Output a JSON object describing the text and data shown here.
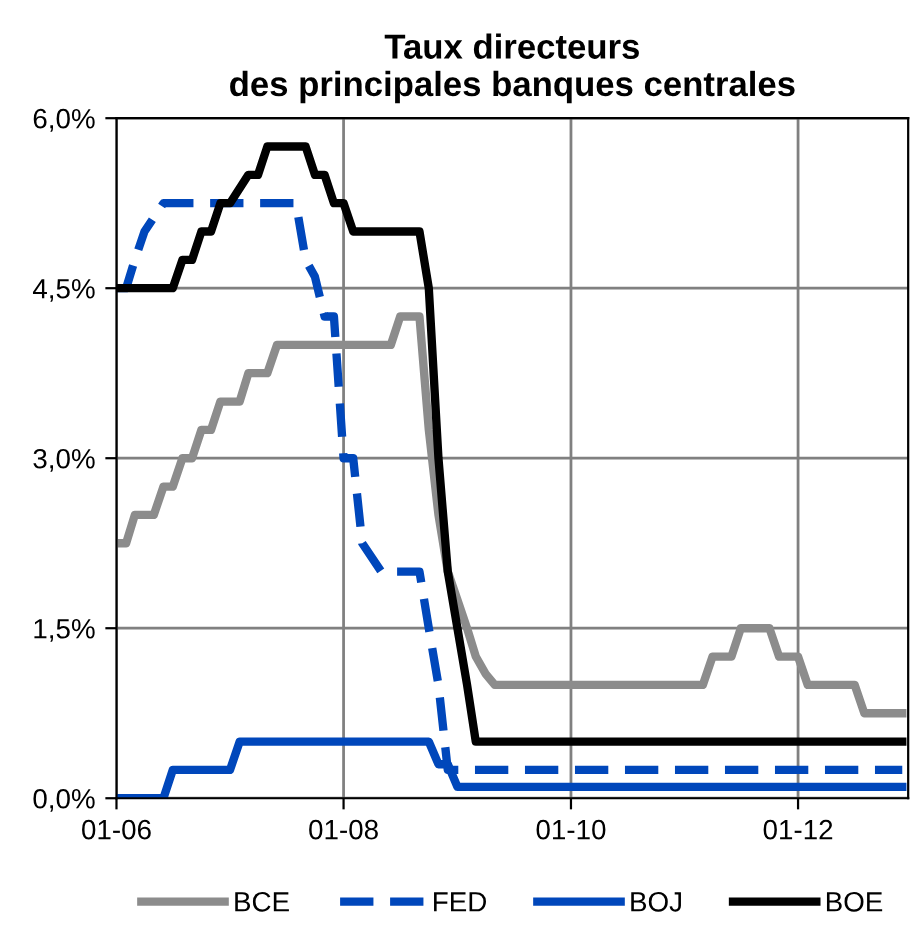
{
  "chart_data": {
    "type": "line",
    "title": "Taux directeurs\ndes principales banques centrales",
    "xlim": [
      "2006-01",
      "2012-12-20"
    ],
    "xticks": [
      {
        "value": "2006-01",
        "label": "01-06"
      },
      {
        "value": "2008-01",
        "label": "01-08"
      },
      {
        "value": "2010-01",
        "label": "01-10"
      },
      {
        "value": "2012-01",
        "label": "01-12"
      }
    ],
    "ylim": [
      0,
      6
    ],
    "yticks": [
      {
        "value": 0,
        "label": "0,0%"
      },
      {
        "value": 1.5,
        "label": "1,5%"
      },
      {
        "value": 3,
        "label": "3,0%"
      },
      {
        "value": 4.5,
        "label": "4,5%"
      },
      {
        "value": 6,
        "label": "6,0%"
      }
    ],
    "grid": true,
    "legend": "bottom",
    "series": [
      {
        "name": "BCE",
        "color": "#8c8c8c",
        "line_style": "solid",
        "x": [
          "2006-01",
          "2006-02",
          "2006-03",
          "2006-05",
          "2006-06",
          "2006-07",
          "2006-08",
          "2006-09",
          "2006-10",
          "2006-11",
          "2006-12",
          "2007-02",
          "2007-03",
          "2007-05",
          "2007-06",
          "2008-06",
          "2008-07",
          "2008-09",
          "2008-10",
          "2008-11",
          "2008-12",
          "2009-01",
          "2009-02",
          "2009-03",
          "2009-04",
          "2009-05",
          "2011-03",
          "2011-04",
          "2011-06",
          "2011-07",
          "2011-10",
          "2011-11",
          "2012-01",
          "2012-02",
          "2012-07",
          "2012-08",
          "2012-12"
        ],
        "values": [
          2.25,
          2.25,
          2.5,
          2.5,
          2.75,
          2.75,
          3.0,
          3.0,
          3.25,
          3.25,
          3.5,
          3.5,
          3.75,
          3.75,
          4.0,
          4.0,
          4.25,
          4.25,
          3.25,
          2.5,
          2.0,
          1.75,
          1.5,
          1.25,
          1.1,
          1.0,
          1.0,
          1.25,
          1.25,
          1.5,
          1.5,
          1.25,
          1.25,
          1.0,
          1.0,
          0.75,
          0.75
        ]
      },
      {
        "name": "FED",
        "color": "#0047bb",
        "line_style": "dashed",
        "x": [
          "2006-01",
          "2006-02",
          "2006-03",
          "2006-04",
          "2006-06",
          "2007-08",
          "2007-09",
          "2007-10",
          "2007-11",
          "2007-12",
          "2008-01",
          "2008-02",
          "2008-03",
          "2008-05",
          "2008-09",
          "2008-10",
          "2008-11",
          "2008-12",
          "2012-12"
        ],
        "values": [
          4.5,
          4.5,
          4.75,
          5.0,
          5.25,
          5.25,
          4.75,
          4.6,
          4.25,
          4.25,
          3.0,
          3.0,
          2.25,
          2.0,
          2.0,
          1.5,
          1.0,
          0.25,
          0.25
        ]
      },
      {
        "name": "BOJ",
        "color": "#0047bb",
        "line_style": "solid",
        "x": [
          "2006-01",
          "2006-06",
          "2006-07",
          "2007-01",
          "2007-02",
          "2008-10",
          "2008-11",
          "2008-12",
          "2009-01",
          "2012-12"
        ],
        "values": [
          0,
          0,
          0.25,
          0.25,
          0.5,
          0.5,
          0.3,
          0.3,
          0.1,
          0.1
        ]
      },
      {
        "name": "BOE",
        "color": "#000000",
        "line_style": "solid",
        "x": [
          "2006-01",
          "2006-07",
          "2006-08",
          "2006-09",
          "2006-10",
          "2006-11",
          "2006-12",
          "2007-01",
          "2007-03",
          "2007-04",
          "2007-05",
          "2007-06",
          "2007-09",
          "2007-10",
          "2007-11",
          "2007-12",
          "2008-01",
          "2008-02",
          "2008-03",
          "2008-04",
          "2008-09",
          "2008-10",
          "2008-11",
          "2008-12",
          "2009-01",
          "2009-02",
          "2009-03",
          "2012-12"
        ],
        "values": [
          4.5,
          4.5,
          4.75,
          4.75,
          5.0,
          5.0,
          5.25,
          5.25,
          5.5,
          5.5,
          5.75,
          5.75,
          5.75,
          5.5,
          5.5,
          5.25,
          5.25,
          5.0,
          5.0,
          5.0,
          5.0,
          4.5,
          3.0,
          2.0,
          1.5,
          1.0,
          0.5,
          0.5
        ]
      }
    ]
  }
}
